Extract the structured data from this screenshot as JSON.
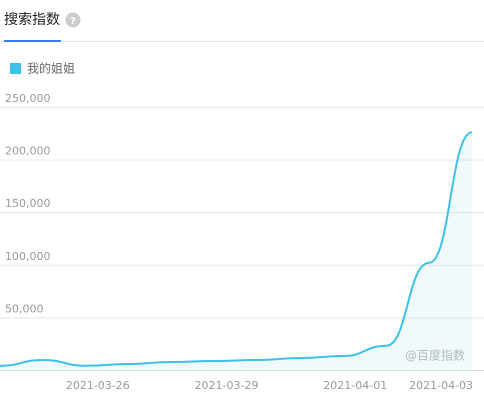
{
  "chart_data": {
    "type": "line",
    "title": "搜索指数",
    "annotation": "@百度指数",
    "categories": [
      null,
      null,
      "2021-03-26",
      null,
      null,
      "2021-03-29",
      null,
      null,
      "2021-04-01",
      null,
      "2021-04-03",
      null
    ],
    "series": [
      {
        "name": "我的姐姐",
        "color": "#3ec1e6",
        "values": [
          4000,
          9500,
          4000,
          5700,
          7600,
          8600,
          9500,
          11400,
          13300,
          23000,
          102000,
          226000
        ]
      }
    ],
    "ylim": [
      0,
      250000
    ],
    "yticks": [
      {
        "value": 50000,
        "label": "50,000"
      },
      {
        "value": 100000,
        "label": "100,000"
      },
      {
        "value": 150000,
        "label": "150,000"
      },
      {
        "value": 200000,
        "label": "200,000"
      },
      {
        "value": 250000,
        "label": "250,000"
      }
    ],
    "grid": true,
    "area": true
  }
}
